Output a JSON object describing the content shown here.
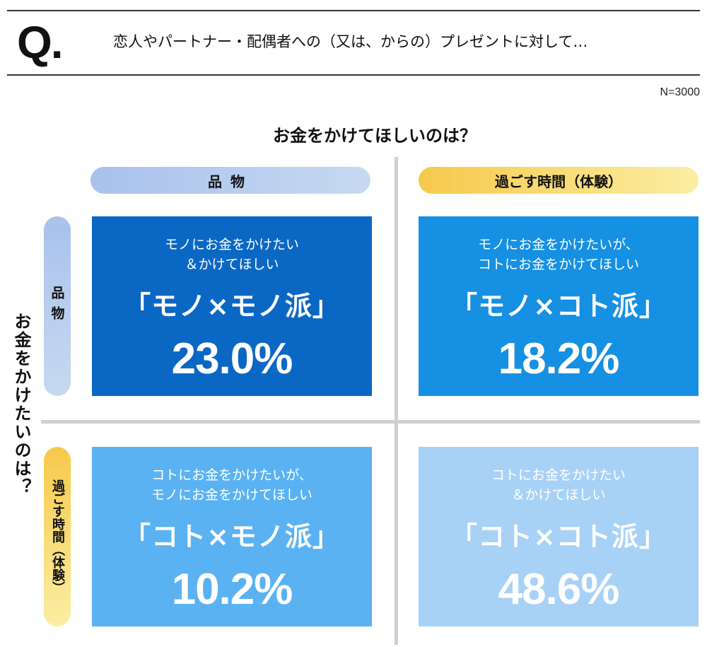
{
  "header": {
    "q_mark": "Q.",
    "question": "恋人やパートナー・配偶者への（又は、からの）プレゼントに対して…"
  },
  "sample_size": "N=3000",
  "axes": {
    "want_title": "お金をかけてほしいのは？",
    "give_title": "お金をかけたいのは？",
    "col_goods": "品物",
    "col_time": "過ごす時間（体験）",
    "row_goods": "品物",
    "row_time": "過ごす時間（体験）"
  },
  "colors": {
    "cell_mono_mono": "#0b67c4",
    "cell_mono_koto": "#1590e3",
    "cell_koto_mono": "#5bb2f2",
    "cell_koto_koto": "#a8d1f6",
    "goods_pill": "#b6cced",
    "time_pill": "#f8d96a"
  },
  "chart_data": {
    "type": "table",
    "title": "お金をかけてほしいのは？",
    "row_axis": "お金をかけたいのは？",
    "columns": [
      "品物",
      "過ごす時間（体験）"
    ],
    "rows": [
      "品物",
      "過ごす時間（体験）"
    ],
    "cells": [
      {
        "row": "品物",
        "column": "品物",
        "desc_line1": "モノにお金をかけたい",
        "desc_line2": "＆かけてほしい",
        "name": "「モノ×モノ派」",
        "value": 23.0,
        "label": "23.0%"
      },
      {
        "row": "品物",
        "column": "過ごす時間（体験）",
        "desc_line1": "モノにお金をかけたいが、",
        "desc_line2": "コトにお金をかけてほしい",
        "name": "「モノ×コト派」",
        "value": 18.2,
        "label": "18.2%"
      },
      {
        "row": "過ごす時間（体験）",
        "column": "品物",
        "desc_line1": "コトにお金をかけたいが、",
        "desc_line2": "モノにお金をかけてほしい",
        "name": "「コト×モノ派」",
        "value": 10.2,
        "label": "10.2%"
      },
      {
        "row": "過ごす時間（体験）",
        "column": "過ごす時間（体験）",
        "desc_line1": "コトにお金をかけたい",
        "desc_line2": "＆かけてほしい",
        "name": "「コト×コト派」",
        "value": 48.6,
        "label": "48.6%"
      }
    ]
  }
}
